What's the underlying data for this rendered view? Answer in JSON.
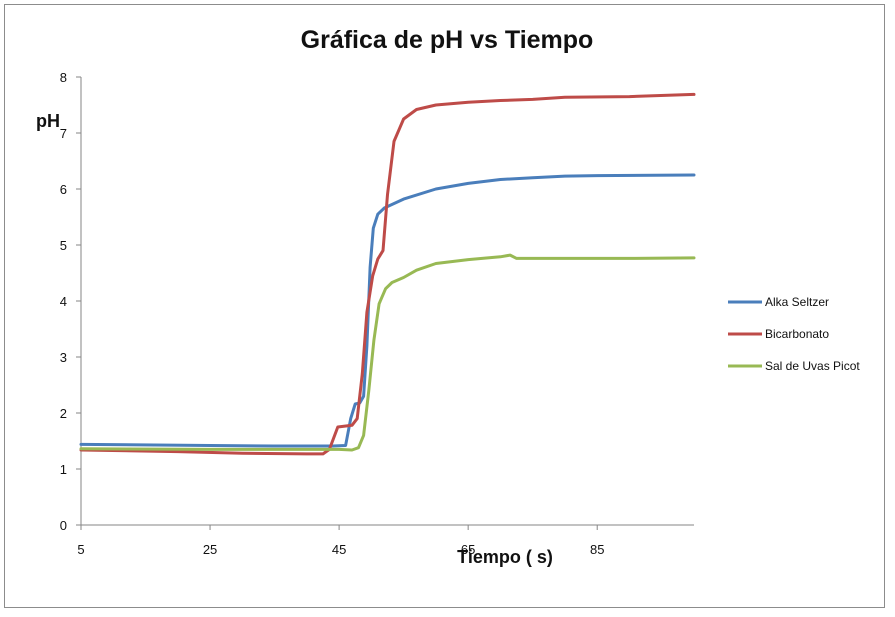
{
  "chart_data": {
    "type": "line",
    "title": "Gráfica  de pH vs Tiempo",
    "xlabel": "Tiempo ( s)",
    "ylabel": "pH",
    "xlim": [
      5,
      100
    ],
    "ylim": [
      0,
      8
    ],
    "x_ticks": [
      5,
      25,
      45,
      65,
      85
    ],
    "y_ticks": [
      0,
      1,
      2,
      3,
      4,
      5,
      6,
      7,
      8
    ],
    "grid": false,
    "legend_position": "right",
    "series": [
      {
        "name": "Alka Seltzer",
        "color": "#4a7ebb",
        "points": [
          [
            5,
            1.44
          ],
          [
            25,
            1.42
          ],
          [
            35,
            1.41
          ],
          [
            44,
            1.41
          ],
          [
            46,
            1.42
          ],
          [
            46.8,
            1.9
          ],
          [
            47.5,
            2.16
          ],
          [
            48.2,
            2.18
          ],
          [
            48.8,
            2.3
          ],
          [
            49.3,
            3.2
          ],
          [
            49.8,
            4.6
          ],
          [
            50.3,
            5.3
          ],
          [
            51,
            5.55
          ],
          [
            52,
            5.66
          ],
          [
            55,
            5.82
          ],
          [
            60,
            6.0
          ],
          [
            65,
            6.1
          ],
          [
            70,
            6.17
          ],
          [
            75,
            6.2
          ],
          [
            80,
            6.23
          ],
          [
            85,
            6.24
          ],
          [
            100,
            6.25
          ]
        ]
      },
      {
        "name": "Bicarbonato",
        "color": "#be4b48",
        "points": [
          [
            5,
            1.34
          ],
          [
            20,
            1.31
          ],
          [
            30,
            1.28
          ],
          [
            40,
            1.27
          ],
          [
            42.5,
            1.27
          ],
          [
            43.5,
            1.35
          ],
          [
            44.8,
            1.75
          ],
          [
            47,
            1.78
          ],
          [
            47.8,
            1.9
          ],
          [
            48.6,
            2.7
          ],
          [
            49.3,
            3.8
          ],
          [
            50.2,
            4.45
          ],
          [
            51,
            4.75
          ],
          [
            51.8,
            4.9
          ],
          [
            52.5,
            5.9
          ],
          [
            53.5,
            6.85
          ],
          [
            55,
            7.25
          ],
          [
            57,
            7.42
          ],
          [
            60,
            7.5
          ],
          [
            65,
            7.55
          ],
          [
            70,
            7.58
          ],
          [
            75,
            7.6
          ],
          [
            80,
            7.64
          ],
          [
            90,
            7.65
          ],
          [
            100,
            7.69
          ]
        ]
      },
      {
        "name": "Sal de Uvas Picot",
        "color": "#98b954",
        "points": [
          [
            5,
            1.36
          ],
          [
            25,
            1.35
          ],
          [
            35,
            1.35
          ],
          [
            45,
            1.35
          ],
          [
            47,
            1.34
          ],
          [
            48,
            1.38
          ],
          [
            48.8,
            1.6
          ],
          [
            49.6,
            2.4
          ],
          [
            50.4,
            3.3
          ],
          [
            51.2,
            3.95
          ],
          [
            52.2,
            4.22
          ],
          [
            53.2,
            4.33
          ],
          [
            55,
            4.42
          ],
          [
            57,
            4.55
          ],
          [
            60,
            4.67
          ],
          [
            65,
            4.74
          ],
          [
            70,
            4.79
          ],
          [
            71.5,
            4.82
          ],
          [
            72.5,
            4.76
          ],
          [
            75,
            4.76
          ],
          [
            80,
            4.76
          ],
          [
            90,
            4.76
          ],
          [
            100,
            4.77
          ]
        ]
      }
    ]
  }
}
